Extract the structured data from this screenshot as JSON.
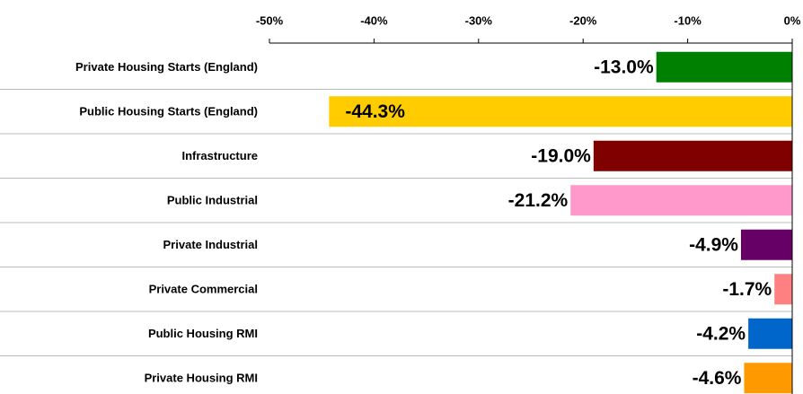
{
  "chart_data": {
    "type": "hbar",
    "categories": [
      "Private Housing Starts (England)",
      "Public Housing Starts (England)",
      "Infrastructure",
      "Public Industrial",
      "Private Industrial",
      "Private Commercial",
      "Public Housing RMI",
      "Private Housing RMI"
    ],
    "values": [
      -13.0,
      -44.3,
      -19.0,
      -21.2,
      -4.9,
      -1.7,
      -4.2,
      -4.6
    ],
    "value_labels": [
      "-13.0%",
      "-44.3%",
      "-19.0%",
      "-21.2%",
      "-4.9%",
      "-1.7%",
      "-4.2%",
      "-4.6%"
    ],
    "colors": [
      "#008000",
      "#ffcc00",
      "#800000",
      "#ff99cc",
      "#660066",
      "#ff8080",
      "#0066cc",
      "#ff9900"
    ],
    "xlim": [
      -50,
      0
    ],
    "xticks": [
      {
        "value": -50,
        "label": "-50%"
      },
      {
        "value": -40,
        "label": "-40%"
      },
      {
        "value": -30,
        "label": "-30%"
      },
      {
        "value": -20,
        "label": "-20%"
      },
      {
        "value": -10,
        "label": "-10%"
      },
      {
        "value": 0,
        "label": "0%"
      }
    ]
  }
}
